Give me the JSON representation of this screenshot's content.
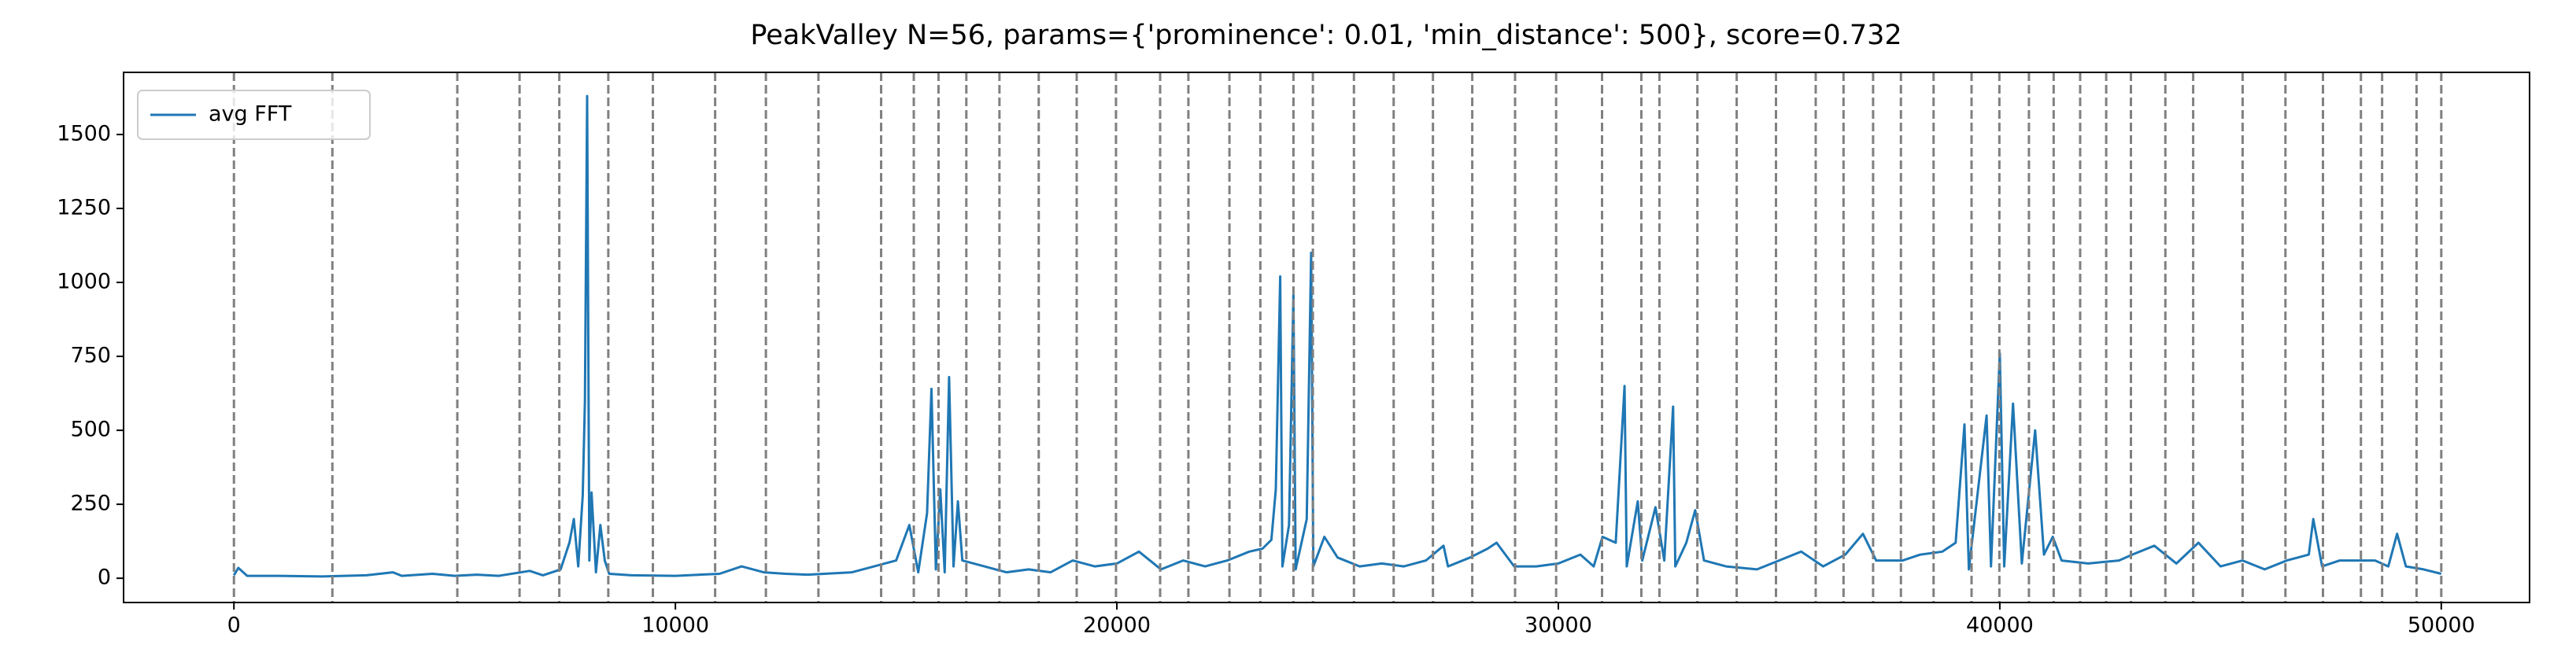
{
  "chart_data": {
    "type": "line",
    "title": "PeakValley N=56, params={'prominence': 0.01, 'min_distance': 500}, score=0.732",
    "x": [
      0,
      100,
      300,
      1000,
      2000,
      3000,
      3600,
      3800,
      4500,
      5000,
      5500,
      6000,
      6700,
      7000,
      7400,
      7600,
      7700,
      7800,
      7900,
      7950,
      8000,
      8050,
      8100,
      8200,
      8300,
      8400,
      8500,
      9000,
      10000,
      11000,
      11500,
      12000,
      12500,
      13000,
      14000,
      14500,
      15000,
      15300,
      15500,
      15700,
      15800,
      15900,
      16000,
      16100,
      16200,
      16300,
      16400,
      16500,
      17000,
      17500,
      18000,
      18500,
      19000,
      19500,
      20000,
      20500,
      21000,
      21500,
      22000,
      22500,
      23000,
      23300,
      23500,
      23600,
      23700,
      23750,
      23900,
      24000,
      24050,
      24300,
      24400,
      24450,
      24700,
      25000,
      25500,
      26000,
      26500,
      27000,
      27400,
      27500,
      28000,
      28400,
      28600,
      29000,
      29500,
      30000,
      30500,
      30800,
      31000,
      31300,
      31500,
      31550,
      31800,
      31900,
      32100,
      32200,
      32400,
      32600,
      32650,
      32900,
      33100,
      33300,
      33800,
      34500,
      35000,
      35500,
      36000,
      36500,
      36900,
      37200,
      37800,
      38200,
      38700,
      39000,
      39200,
      39300,
      39700,
      39800,
      40000,
      40100,
      40300,
      40500,
      40800,
      41000,
      41200,
      41400,
      42000,
      42700,
      43000,
      43500,
      44000,
      44500,
      45000,
      45500,
      46000,
      46500,
      47000,
      47100,
      47300,
      47700,
      48200,
      48500,
      48800,
      49000,
      49200,
      49600,
      50000
    ],
    "series": [
      {
        "name": "avg FFT",
        "color": "#1f77b4",
        "values": [
          10,
          35,
          8,
          8,
          6,
          10,
          20,
          8,
          15,
          8,
          12,
          8,
          25,
          10,
          30,
          120,
          200,
          40,
          280,
          600,
          1630,
          60,
          290,
          20,
          180,
          60,
          15,
          10,
          8,
          15,
          40,
          20,
          15,
          12,
          20,
          40,
          60,
          180,
          20,
          220,
          640,
          30,
          300,
          20,
          680,
          40,
          260,
          60,
          40,
          20,
          30,
          20,
          60,
          40,
          50,
          90,
          30,
          60,
          40,
          60,
          90,
          100,
          130,
          300,
          1020,
          40,
          180,
          960,
          30,
          200,
          1100,
          40,
          140,
          70,
          40,
          50,
          40,
          60,
          110,
          40,
          70,
          100,
          120,
          40,
          40,
          50,
          80,
          40,
          140,
          120,
          650,
          40,
          260,
          60,
          180,
          240,
          60,
          580,
          40,
          120,
          230,
          60,
          40,
          30,
          60,
          90,
          40,
          80,
          150,
          60,
          60,
          80,
          90,
          120,
          520,
          30,
          550,
          40,
          760,
          40,
          590,
          50,
          500,
          80,
          140,
          60,
          50,
          60,
          80,
          110,
          50,
          120,
          40,
          60,
          30,
          60,
          80,
          200,
          40,
          60,
          60,
          60,
          40,
          150,
          40,
          30,
          15
        ]
      }
    ],
    "vlines": {
      "color": "#808080",
      "x": [
        0,
        2230,
        5060,
        6470,
        7370,
        8480,
        9490,
        10900,
        12050,
        13240,
        14660,
        15400,
        15960,
        16590,
        17340,
        18230,
        19090,
        19980,
        20980,
        21620,
        22550,
        23250,
        24000,
        24440,
        25370,
        26270,
        27160,
        28050,
        29020,
        29950,
        30990,
        31880,
        32290,
        33150,
        34040,
        34930,
        35830,
        36460,
        37130,
        37760,
        38500,
        39360,
        39990,
        40660,
        41220,
        41820,
        42410,
        42970,
        43750,
        44380,
        45500,
        46470,
        47320,
        48180,
        48660,
        49440,
        50000
      ]
    },
    "xlim": [
      -2500,
      52000
    ],
    "ylim": [
      -82,
      1710
    ],
    "xticks": [
      0,
      10000,
      20000,
      30000,
      40000,
      50000
    ],
    "yticks": [
      0,
      250,
      500,
      750,
      1000,
      1250,
      1500
    ],
    "legend": "upper left"
  }
}
